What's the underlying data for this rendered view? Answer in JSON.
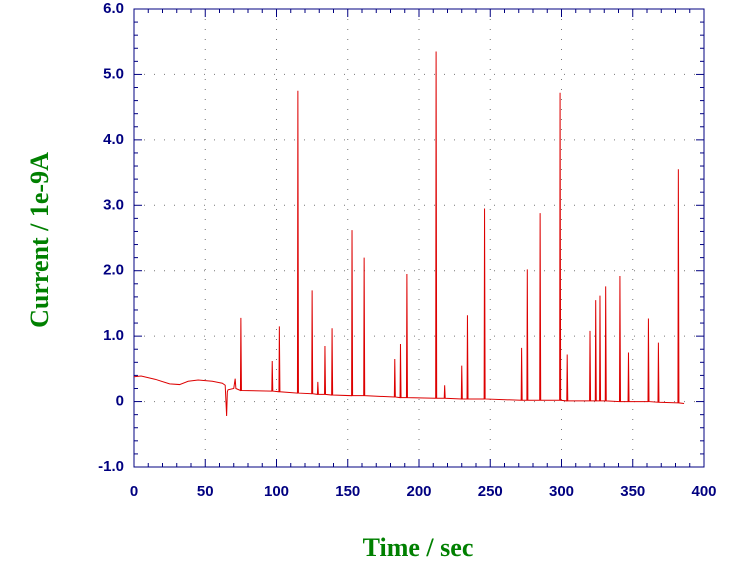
{
  "chart_data": {
    "type": "line",
    "xlabel": "Time / sec",
    "ylabel": "Current / 1e-9A",
    "xlim": [
      0,
      400
    ],
    "ylim": [
      -1,
      6
    ],
    "xticks": [
      0,
      50,
      100,
      150,
      200,
      250,
      300,
      350,
      400
    ],
    "yticks": [
      {
        "value": -1,
        "label": "-1.0"
      },
      0,
      {
        "value": 1,
        "label": "1.0"
      },
      {
        "value": 2,
        "label": "2.0"
      },
      {
        "value": 3,
        "label": "3.0"
      },
      {
        "value": 4,
        "label": "4.0"
      },
      {
        "value": 5,
        "label": "5.0"
      },
      {
        "value": 6,
        "label": "6.0"
      }
    ],
    "grid": true,
    "series": [
      {
        "color": "#dd0000",
        "x": [
          0,
          5,
          15,
          25,
          32,
          38,
          45,
          55,
          62,
          64,
          65,
          65.5,
          66,
          70,
          71,
          71.5,
          74.7,
          75,
          75.4,
          96.7,
          97,
          97.4,
          101.7,
          102,
          102.4,
          114.7,
          115,
          115.4,
          124.7,
          125,
          125.4,
          128.7,
          129,
          129.4,
          133.7,
          134,
          134.4,
          138.7,
          139,
          139.4,
          152.7,
          153,
          153.4,
          161.2,
          161.5,
          161.9,
          182.7,
          183,
          183.4,
          186.7,
          187,
          187.4,
          191.2,
          191.5,
          191.9,
          211.7,
          212,
          212.4,
          217.7,
          218,
          218.4,
          229.7,
          230,
          230.4,
          233.7,
          234,
          234.4,
          245.7,
          246,
          246.4,
          271.7,
          272,
          272.4,
          275.7,
          276,
          276.4,
          284.7,
          285,
          285.4,
          298.7,
          299,
          299.4,
          303.7,
          304,
          304.4,
          319.7,
          320,
          320.4,
          323.7,
          324,
          324.4,
          326.7,
          327,
          327.4,
          330.7,
          331,
          331.4,
          340.7,
          341,
          341.4,
          346.7,
          347,
          347.4,
          360.7,
          361,
          361.4,
          367.7,
          368,
          368.4,
          381.7,
          382,
          382.4,
          386
        ],
        "values": [
          0.38,
          0.39,
          0.34,
          0.27,
          0.26,
          0.31,
          0.33,
          0.31,
          0.28,
          0.25,
          -0.22,
          0.15,
          0.18,
          0.2,
          0.35,
          0.2,
          0.17,
          1.28,
          0.17,
          0.16,
          0.62,
          0.16,
          0.15,
          1.15,
          0.15,
          0.13,
          4.75,
          0.13,
          0.12,
          1.7,
          0.12,
          0.11,
          0.3,
          0.11,
          0.11,
          0.85,
          0.11,
          0.1,
          1.12,
          0.1,
          0.09,
          2.62,
          0.09,
          0.09,
          2.2,
          0.09,
          0.07,
          0.65,
          0.07,
          0.06,
          0.88,
          0.06,
          0.06,
          1.95,
          0.06,
          0.05,
          5.35,
          0.05,
          0.05,
          0.25,
          0.05,
          0.04,
          0.55,
          0.04,
          0.04,
          1.32,
          0.04,
          0.04,
          2.95,
          0.04,
          0.02,
          0.82,
          0.02,
          0.02,
          2.02,
          0.02,
          0.02,
          2.88,
          0.02,
          0.02,
          4.72,
          0.02,
          0.01,
          0.72,
          0.01,
          0.01,
          1.08,
          0.01,
          0.01,
          1.55,
          0.01,
          0.01,
          1.62,
          0.01,
          0.01,
          1.76,
          0.01,
          0,
          1.92,
          0,
          0,
          0.75,
          0,
          0,
          1.27,
          0,
          -0.01,
          0.9,
          -0.01,
          -0.02,
          3.55,
          -0.02,
          -0.03
        ]
      }
    ]
  }
}
